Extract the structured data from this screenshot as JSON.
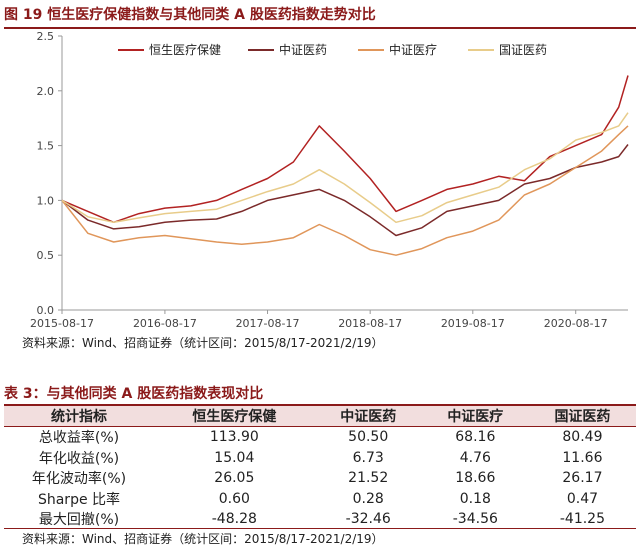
{
  "figure": {
    "title": "图 19  恒生医疗保健指数与其他同类 A 股医药指数走势对比",
    "source": "资料来源：Wind、招商证券（统计区间：2015/8/17-2021/2/19）"
  },
  "chart_data": {
    "type": "line",
    "x": [
      "2015-08-17",
      "2015-11-17",
      "2016-02-17",
      "2016-05-17",
      "2016-08-17",
      "2016-11-17",
      "2017-02-17",
      "2017-05-17",
      "2017-08-17",
      "2017-11-17",
      "2018-02-17",
      "2018-05-17",
      "2018-08-17",
      "2018-11-17",
      "2019-02-17",
      "2019-05-17",
      "2019-08-17",
      "2019-11-17",
      "2020-02-17",
      "2020-05-17",
      "2020-08-17",
      "2020-11-17",
      "2021-01-17",
      "2021-02-19"
    ],
    "xticks": [
      "2015-08-17",
      "2016-08-17",
      "2017-08-17",
      "2018-08-17",
      "2019-08-17",
      "2020-08-17"
    ],
    "ylim": [
      0.0,
      2.5
    ],
    "yticks": [
      "0.0",
      "0.5",
      "1.0",
      "1.5",
      "2.0",
      "2.5"
    ],
    "legend_position": "top",
    "series": [
      {
        "name": "恒生医疗保健",
        "color": "#b22222",
        "values": [
          1.0,
          0.9,
          0.8,
          0.88,
          0.93,
          0.95,
          1.0,
          1.1,
          1.2,
          1.35,
          1.68,
          1.45,
          1.2,
          0.9,
          1.0,
          1.1,
          1.15,
          1.22,
          1.18,
          1.4,
          1.5,
          1.6,
          1.85,
          2.14
        ]
      },
      {
        "name": "中证医药",
        "color": "#7b2a2a",
        "values": [
          1.0,
          0.82,
          0.74,
          0.76,
          0.8,
          0.82,
          0.83,
          0.9,
          1.0,
          1.05,
          1.1,
          1.0,
          0.85,
          0.68,
          0.75,
          0.9,
          0.95,
          1.0,
          1.15,
          1.2,
          1.3,
          1.35,
          1.4,
          1.51
        ]
      },
      {
        "name": "中证医疗",
        "color": "#e0965a",
        "values": [
          1.0,
          0.7,
          0.62,
          0.66,
          0.68,
          0.65,
          0.62,
          0.6,
          0.62,
          0.66,
          0.78,
          0.68,
          0.55,
          0.5,
          0.56,
          0.66,
          0.72,
          0.82,
          1.05,
          1.15,
          1.3,
          1.45,
          1.6,
          1.68
        ]
      },
      {
        "name": "国证医药",
        "color": "#e8cc8a",
        "values": [
          1.0,
          0.85,
          0.8,
          0.84,
          0.88,
          0.9,
          0.92,
          1.0,
          1.08,
          1.15,
          1.28,
          1.15,
          0.98,
          0.8,
          0.86,
          0.98,
          1.05,
          1.12,
          1.28,
          1.38,
          1.55,
          1.62,
          1.68,
          1.8
        ]
      }
    ]
  },
  "table": {
    "title": "表 3：与其他同类 A 股医药指数表现对比",
    "headers": [
      "统计指标",
      "恒生医疗保健",
      "中证医药",
      "中证医疗",
      "国证医药"
    ],
    "rows": [
      [
        "总收益率(%)",
        "113.90",
        "50.50",
        "68.16",
        "80.49"
      ],
      [
        "年化收益(%)",
        "15.04",
        "6.73",
        "4.76",
        "11.66"
      ],
      [
        "年化波动率(%)",
        "26.05",
        "21.52",
        "18.66",
        "26.17"
      ],
      [
        "Sharpe 比率",
        "0.60",
        "0.28",
        "0.18",
        "0.47"
      ],
      [
        "最大回撤(%)",
        "-48.28",
        "-32.46",
        "-34.56",
        "-41.25"
      ]
    ],
    "source": "资料来源：Wind、招商证券（统计区间：2015/8/17-2021/2/19）"
  }
}
